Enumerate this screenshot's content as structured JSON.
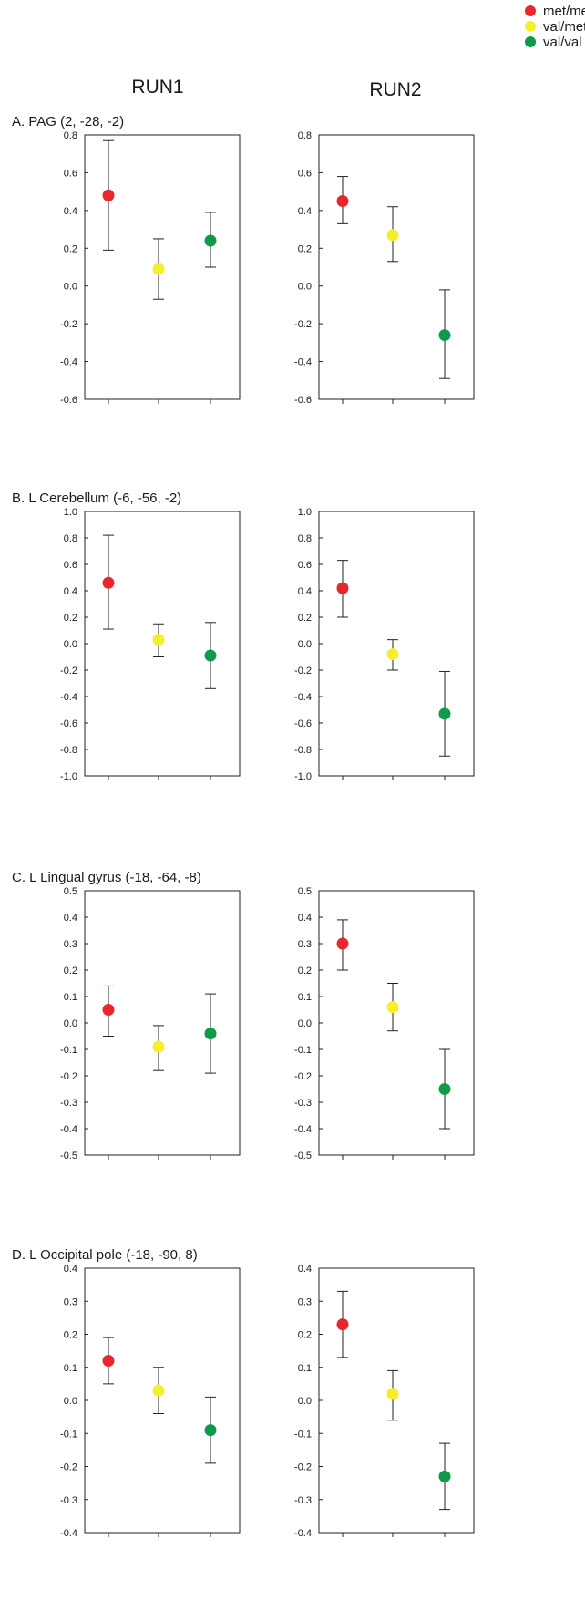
{
  "legend": [
    {
      "label": "met/met",
      "color": "#e8262b"
    },
    {
      "label": "val/met",
      "color": "#f5ef2a"
    },
    {
      "label": "val/val",
      "color": "#0f9a4a"
    }
  ],
  "columns": [
    "RUN1",
    "RUN2"
  ],
  "chart_data": [
    {
      "type": "scatter",
      "title": "A.  PAG (2, -28, -2)",
      "run": "RUN1",
      "categories": [
        "met/met",
        "val/met",
        "val/val"
      ],
      "values": [
        0.48,
        0.09,
        0.24
      ],
      "errors_low": [
        0.19,
        -0.07,
        0.1
      ],
      "errors_high": [
        0.77,
        0.25,
        0.39
      ],
      "ylim": [
        -0.6,
        0.8
      ],
      "yticks": [
        "0.8",
        "0.6",
        "0.4",
        "0.2",
        "0.0",
        "-0.2",
        "-0.4",
        "-0.6"
      ],
      "xlabel": "",
      "ylabel": ""
    },
    {
      "type": "scatter",
      "title": "",
      "run": "RUN2",
      "categories": [
        "met/met",
        "val/met",
        "val/val"
      ],
      "values": [
        0.45,
        0.27,
        -0.26
      ],
      "errors_low": [
        0.33,
        0.13,
        -0.49
      ],
      "errors_high": [
        0.58,
        0.42,
        -0.02
      ],
      "ylim": [
        -0.6,
        0.8
      ],
      "yticks": [
        "0.8",
        "0.6",
        "0.4",
        "0.2",
        "0.0",
        "-0.2",
        "-0.4",
        "-0.6"
      ],
      "xlabel": "",
      "ylabel": ""
    },
    {
      "type": "scatter",
      "title": "B.  L Cerebellum (-6, -56, -2)",
      "run": "RUN1",
      "categories": [
        "met/met",
        "val/met",
        "val/val"
      ],
      "values": [
        0.46,
        0.03,
        -0.09
      ],
      "errors_low": [
        0.11,
        -0.1,
        -0.34
      ],
      "errors_high": [
        0.82,
        0.15,
        0.16
      ],
      "ylim": [
        -1.0,
        1.0
      ],
      "yticks": [
        "1.0",
        "0.8",
        "0.6",
        "0.4",
        "0.2",
        "0.0",
        "-0.2",
        "-0.4",
        "-0.6",
        "-0.8",
        "-1.0"
      ],
      "xlabel": "",
      "ylabel": ""
    },
    {
      "type": "scatter",
      "title": "",
      "run": "RUN2",
      "categories": [
        "met/met",
        "val/met",
        "val/val"
      ],
      "values": [
        0.42,
        -0.08,
        -0.53
      ],
      "errors_low": [
        0.2,
        -0.2,
        -0.85
      ],
      "errors_high": [
        0.63,
        0.03,
        -0.21
      ],
      "ylim": [
        -1.0,
        1.0
      ],
      "yticks": [
        "1.0",
        "0.8",
        "0.6",
        "0.4",
        "0.2",
        "0.0",
        "-0.2",
        "-0.4",
        "-0.6",
        "-0.8",
        "-1.0"
      ],
      "xlabel": "",
      "ylabel": ""
    },
    {
      "type": "scatter",
      "title": "C.  L Lingual gyrus (-18, -64, -8)",
      "run": "RUN1",
      "categories": [
        "met/met",
        "val/met",
        "val/val"
      ],
      "values": [
        0.05,
        -0.09,
        -0.04
      ],
      "errors_low": [
        -0.05,
        -0.18,
        -0.19
      ],
      "errors_high": [
        0.14,
        -0.01,
        0.11
      ],
      "ylim": [
        -0.5,
        0.5
      ],
      "yticks": [
        "0.5",
        "0.4",
        "0.3",
        "0.2",
        "0.1",
        "0.0",
        "-0.1",
        "-0.2",
        "-0.3",
        "-0.4",
        "-0.5"
      ],
      "xlabel": "",
      "ylabel": ""
    },
    {
      "type": "scatter",
      "title": "",
      "run": "RUN2",
      "categories": [
        "met/met",
        "val/met",
        "val/val"
      ],
      "values": [
        0.3,
        0.06,
        -0.25
      ],
      "errors_low": [
        0.2,
        -0.03,
        -0.4
      ],
      "errors_high": [
        0.39,
        0.15,
        -0.1
      ],
      "ylim": [
        -0.5,
        0.5
      ],
      "yticks": [
        "0.5",
        "0.4",
        "0.3",
        "0.2",
        "0.1",
        "0.0",
        "-0.1",
        "-0.2",
        "-0.3",
        "-0.4",
        "-0.5"
      ],
      "xlabel": "",
      "ylabel": ""
    },
    {
      "type": "scatter",
      "title": "D.  L Occipital pole (-18, -90, 8)",
      "run": "RUN1",
      "categories": [
        "met/met",
        "val/met",
        "val/val"
      ],
      "values": [
        0.12,
        0.03,
        -0.09
      ],
      "errors_low": [
        0.05,
        -0.04,
        -0.19
      ],
      "errors_high": [
        0.19,
        0.1,
        0.01
      ],
      "ylim": [
        -0.4,
        0.4
      ],
      "yticks": [
        "0.4",
        "0.3",
        "0.2",
        "0.1",
        "0.0",
        "-0.1",
        "-0.2",
        "-0.3",
        "-0.4"
      ],
      "xlabel": "",
      "ylabel": ""
    },
    {
      "type": "scatter",
      "title": "",
      "run": "RUN2",
      "categories": [
        "met/met",
        "val/met",
        "val/val"
      ],
      "values": [
        0.23,
        0.02,
        -0.23
      ],
      "errors_low": [
        0.13,
        -0.06,
        -0.33
      ],
      "errors_high": [
        0.33,
        0.09,
        -0.13
      ],
      "ylim": [
        -0.4,
        0.4
      ],
      "yticks": [
        "0.4",
        "0.3",
        "0.2",
        "0.1",
        "0.0",
        "-0.1",
        "-0.2",
        "-0.3",
        "-0.4"
      ],
      "xlabel": "",
      "ylabel": ""
    }
  ]
}
